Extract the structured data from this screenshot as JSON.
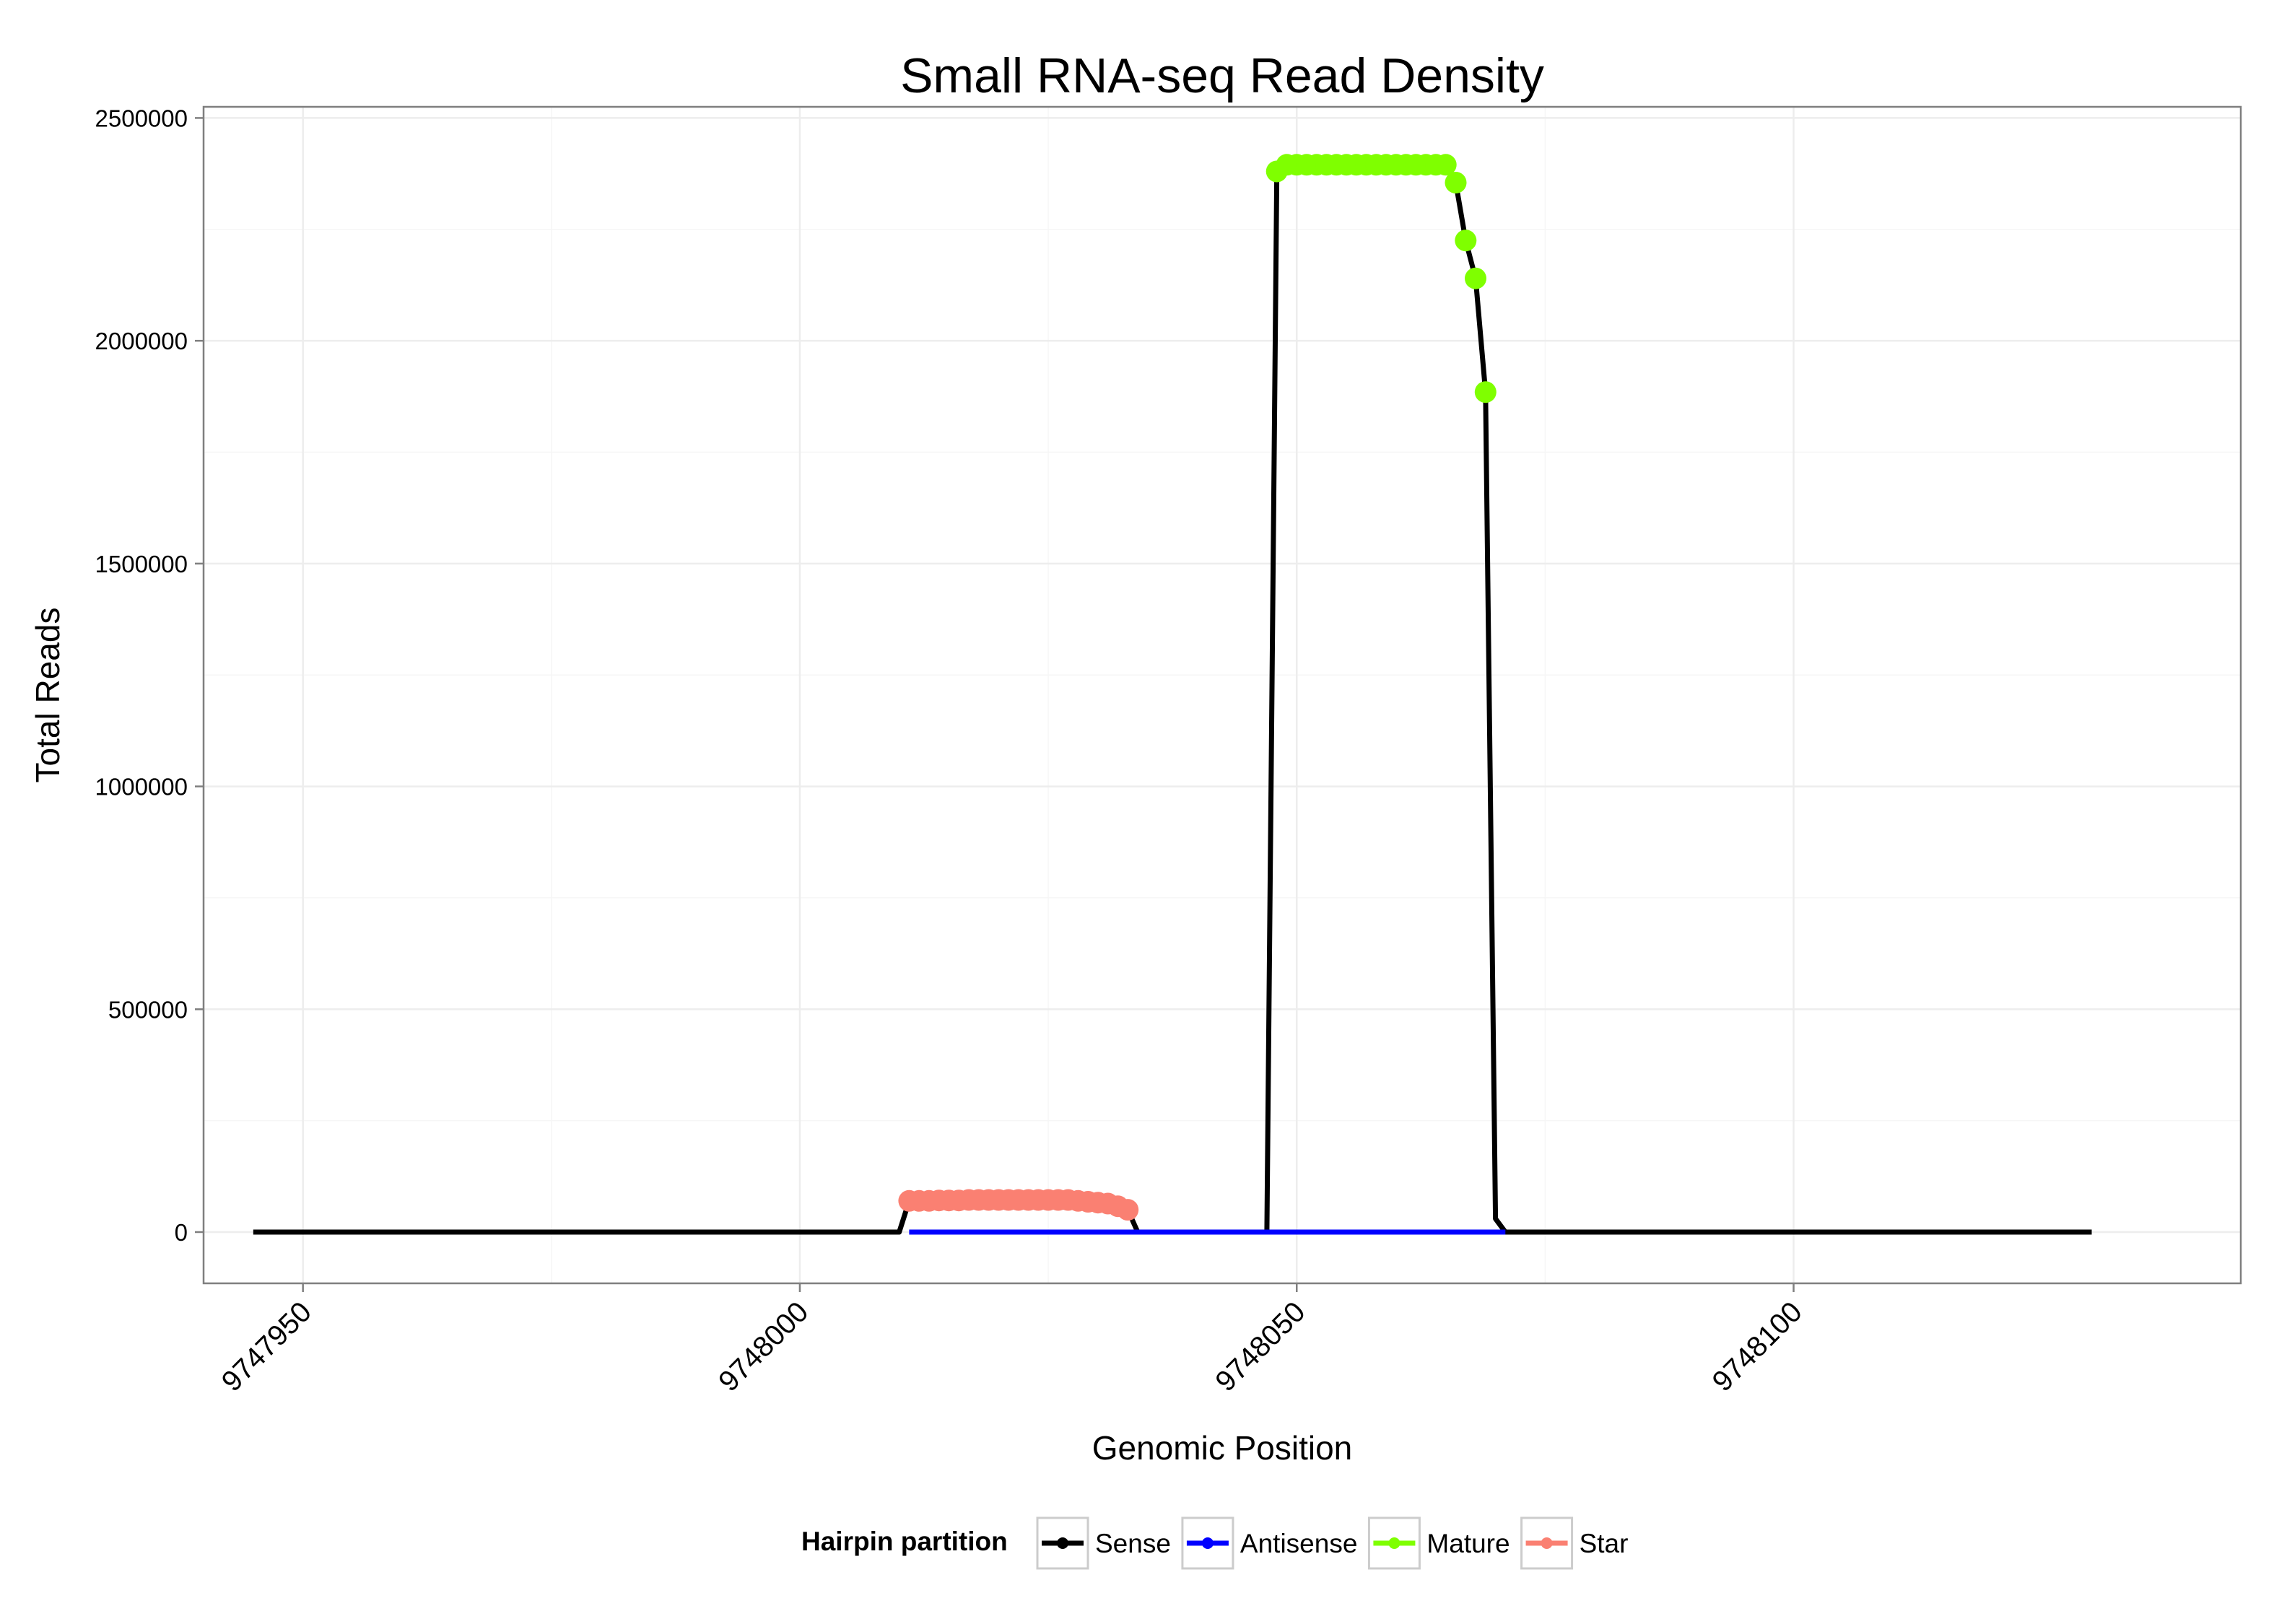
{
  "chart_data": {
    "type": "line",
    "title": "Small RNA-seq Read Density",
    "xlabel": "Genomic Position",
    "ylabel": "Total Reads",
    "xlim": [
      9747940,
      9748145
    ],
    "ylim": [
      -115000,
      2525000
    ],
    "x_ticks": [
      {
        "value": 9747950,
        "label": "9747950"
      },
      {
        "value": 9748000,
        "label": "9748000"
      },
      {
        "value": 9748050,
        "label": "9748050"
      },
      {
        "value": 9748100,
        "label": "9748100"
      }
    ],
    "y_ticks": [
      {
        "value": 0,
        "label": "0"
      },
      {
        "value": 500000,
        "label": "500000"
      },
      {
        "value": 1000000,
        "label": "1000000"
      },
      {
        "value": 1500000,
        "label": "1500000"
      },
      {
        "value": 2000000,
        "label": "2000000"
      },
      {
        "value": 2500000,
        "label": "2500000"
      }
    ],
    "grid": true,
    "legend": {
      "title": "Hairpin partition",
      "position": "bottom",
      "entries": [
        {
          "name": "Sense",
          "color": "#000000"
        },
        {
          "name": "Antisense",
          "color": "#0000FF"
        },
        {
          "name": "Mature",
          "color": "#7FFF00"
        },
        {
          "name": "Star",
          "color": "#FA8072"
        }
      ]
    },
    "series": [
      {
        "name": "Sense",
        "color": "#000000",
        "line": [
          [
            9747945,
            0
          ],
          [
            9748010,
            0
          ],
          [
            9748011,
            70000
          ],
          [
            9748033,
            50000
          ],
          [
            9748034,
            0
          ],
          [
            9748047,
            0
          ],
          [
            9748048,
            2380000
          ],
          [
            9748049,
            2395000
          ],
          [
            9748065,
            2395000
          ],
          [
            9748066,
            2355000
          ],
          [
            9748067,
            2225000
          ],
          [
            9748068,
            2140000
          ],
          [
            9748069,
            1885000
          ],
          [
            9748070,
            30000
          ],
          [
            9748071,
            0
          ],
          [
            9748130,
            0
          ]
        ]
      },
      {
        "name": "Antisense",
        "color": "#0000FF",
        "line": [
          [
            9748011,
            0
          ],
          [
            9748033,
            0
          ],
          [
            9748048,
            0
          ],
          [
            9748071,
            0
          ]
        ]
      },
      {
        "name": "Mature",
        "color": "#7FFF00",
        "points": [
          [
            9748048,
            2380000
          ],
          [
            9748049,
            2395000
          ],
          [
            9748050,
            2395000
          ],
          [
            9748051,
            2395000
          ],
          [
            9748052,
            2395000
          ],
          [
            9748053,
            2395000
          ],
          [
            9748054,
            2395000
          ],
          [
            9748055,
            2395000
          ],
          [
            9748056,
            2395000
          ],
          [
            9748057,
            2395000
          ],
          [
            9748058,
            2395000
          ],
          [
            9748059,
            2395000
          ],
          [
            9748060,
            2395000
          ],
          [
            9748061,
            2395000
          ],
          [
            9748062,
            2395000
          ],
          [
            9748063,
            2395000
          ],
          [
            9748064,
            2395000
          ],
          [
            9748065,
            2395000
          ],
          [
            9748066,
            2355000
          ],
          [
            9748067,
            2225000
          ],
          [
            9748068,
            2140000
          ],
          [
            9748069,
            1885000
          ]
        ]
      },
      {
        "name": "Star",
        "color": "#FA8072",
        "points": [
          [
            9748011,
            70000
          ],
          [
            9748012,
            70000
          ],
          [
            9748013,
            70000
          ],
          [
            9748014,
            71000
          ],
          [
            9748015,
            71000
          ],
          [
            9748016,
            71000
          ],
          [
            9748017,
            72000
          ],
          [
            9748018,
            72000
          ],
          [
            9748019,
            72000
          ],
          [
            9748020,
            72000
          ],
          [
            9748021,
            72000
          ],
          [
            9748022,
            72000
          ],
          [
            9748023,
            72000
          ],
          [
            9748024,
            72000
          ],
          [
            9748025,
            72000
          ],
          [
            9748026,
            72000
          ],
          [
            9748027,
            72000
          ],
          [
            9748028,
            70000
          ],
          [
            9748029,
            68000
          ],
          [
            9748030,
            66000
          ],
          [
            9748031,
            64000
          ],
          [
            9748032,
            58000
          ],
          [
            9748033,
            50000
          ]
        ]
      }
    ]
  }
}
